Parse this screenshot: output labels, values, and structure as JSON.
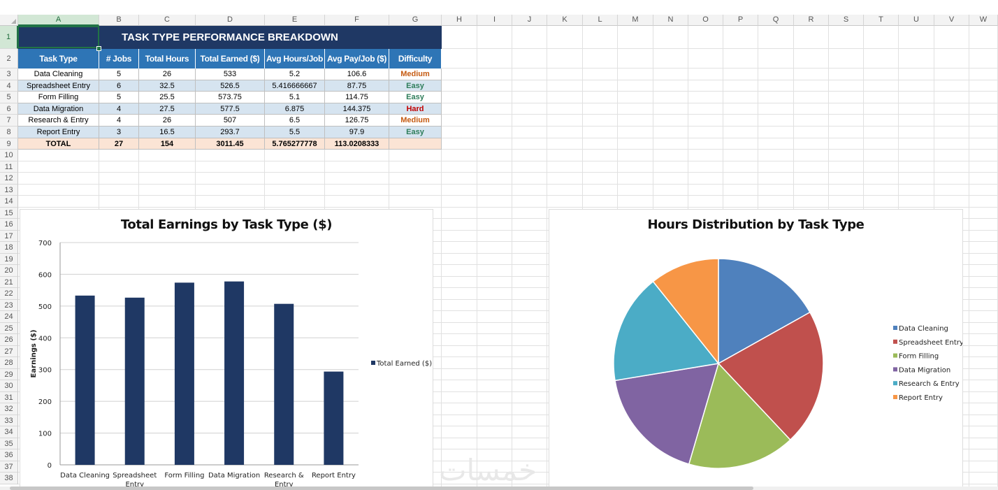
{
  "columns": [
    "A",
    "B",
    "C",
    "D",
    "E",
    "F",
    "G",
    "H",
    "I",
    "J",
    "K",
    "L",
    "M",
    "N",
    "O",
    "P",
    "Q",
    "R",
    "S",
    "T",
    "U",
    "V",
    "W"
  ],
  "rows": [
    "1",
    "2",
    "3",
    "4",
    "5",
    "6",
    "7",
    "8",
    "9",
    "10",
    "11",
    "12",
    "13",
    "14",
    "15",
    "16",
    "17",
    "18",
    "19",
    "20",
    "21",
    "22",
    "23",
    "24",
    "25",
    "26",
    "27",
    "28",
    "29",
    "30",
    "31",
    "32",
    "33",
    "34",
    "35",
    "36",
    "37",
    "38"
  ],
  "table": {
    "title": "TASK TYPE PERFORMANCE BREAKDOWN",
    "headers": [
      "Task Type",
      "# Jobs",
      "Total Hours",
      "Total Earned ($)",
      "Avg Hours/Job",
      "Avg Pay/Job ($)",
      "Difficulty"
    ],
    "rows": [
      [
        "Data Cleaning",
        "5",
        "26",
        "533",
        "5.2",
        "106.6",
        "Medium"
      ],
      [
        "Spreadsheet Entry",
        "6",
        "32.5",
        "526.5",
        "5.416666667",
        "87.75",
        "Easy"
      ],
      [
        "Form Filling",
        "5",
        "25.5",
        "573.75",
        "5.1",
        "114.75",
        "Easy"
      ],
      [
        "Data Migration",
        "4",
        "27.5",
        "577.5",
        "6.875",
        "144.375",
        "Hard"
      ],
      [
        "Research & Entry",
        "4",
        "26",
        "507",
        "6.5",
        "126.75",
        "Medium"
      ],
      [
        "Report Entry",
        "3",
        "16.5",
        "293.7",
        "5.5",
        "97.9",
        "Easy"
      ]
    ],
    "total": [
      "TOTAL",
      "27",
      "154",
      "3011.45",
      "5.765277778",
      "113.0208333",
      ""
    ]
  },
  "colors": {
    "title_bg": "#1f3864",
    "header_bg": "#2e75b6",
    "band": "#d6e4f0",
    "total_bg": "#fbe4d5",
    "Medium": "#c55a11",
    "Easy": "#2e7d5a",
    "Hard": "#c00000",
    "bar": "#1f3864"
  },
  "chart_data": [
    {
      "type": "bar",
      "title": "Total Earnings by Task Type ($)",
      "categories": [
        "Data Cleaning",
        "Spreadsheet Entry",
        "Form Filling",
        "Data Migration",
        "Research & Entry",
        "Report Entry"
      ],
      "series": [
        {
          "name": "Total Earned ($)",
          "values": [
            533,
            526.5,
            573.75,
            577.5,
            507,
            293.7
          ]
        }
      ],
      "ylabel": "Earnings ($)",
      "ylim": [
        0,
        700
      ],
      "yticks": [
        "0",
        "100",
        "200",
        "300",
        "400",
        "500",
        "600",
        "700"
      ],
      "legend": "right",
      "grid": true
    },
    {
      "type": "pie",
      "title": "Hours Distribution by Task Type",
      "labels": [
        "Data Cleaning",
        "Spreadsheet Entry",
        "Form Filling",
        "Data Migration",
        "Research & Entry",
        "Report Entry"
      ],
      "values": [
        26,
        32.5,
        25.5,
        27.5,
        26,
        16.5
      ],
      "colors": [
        "#4f81bd",
        "#c0504d",
        "#9bbb59",
        "#8064a2",
        "#4bacc6",
        "#f79646"
      ],
      "legend": "right"
    }
  ],
  "watermark": "خمسات"
}
